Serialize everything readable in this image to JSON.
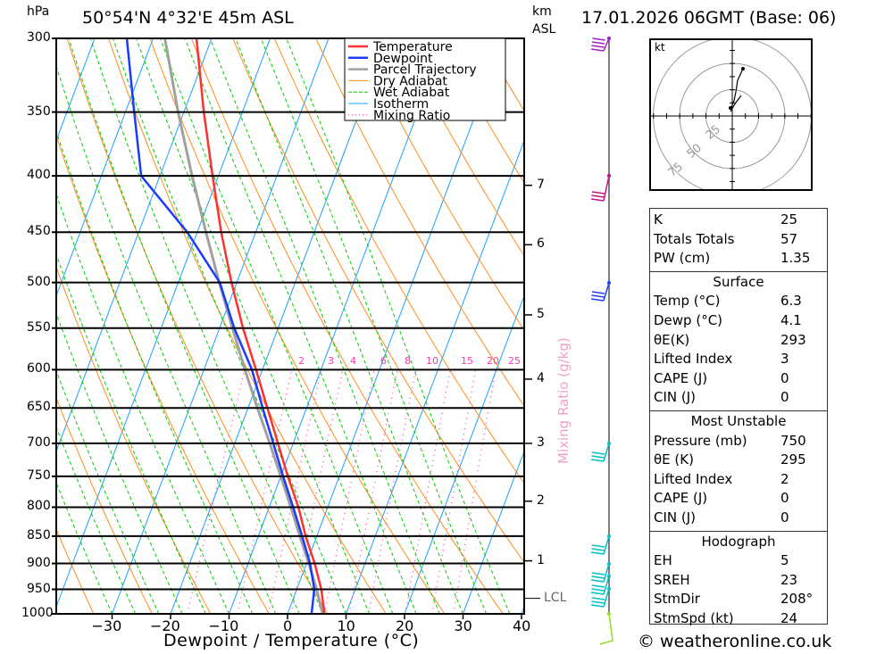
{
  "header": {
    "location": "50°54'N  4°32'E  45m  ASL",
    "datetime": "17.01.2026  06GMT  (Base: 06)",
    "pressure_unit": "hPa",
    "height_unit": "km",
    "height_ref": "ASL"
  },
  "chart_data": {
    "type": "skew-t",
    "title": "50°54'N 4°32'E 45m ASL",
    "xlabel": "Dewpoint / Temperature (°C)",
    "ylabel": "hPa",
    "xlim": [
      -40,
      40
    ],
    "ylim": [
      1000,
      300
    ],
    "x_ticks": [
      -30,
      -20,
      -10,
      0,
      10,
      20,
      30,
      40
    ],
    "x_tick_labels": [
      "−30",
      "−20",
      "−10",
      "0",
      "10",
      "20",
      "30",
      "40"
    ],
    "pressure_levels": [
      300,
      350,
      400,
      450,
      500,
      550,
      600,
      650,
      700,
      750,
      800,
      850,
      900,
      950,
      1000
    ],
    "height_ticks": [
      {
        "km": "7",
        "p": 408
      },
      {
        "km": "6",
        "p": 462
      },
      {
        "km": "5",
        "p": 535
      },
      {
        "km": "4",
        "p": 612
      },
      {
        "km": "3",
        "p": 700
      },
      {
        "km": "2",
        "p": 790
      },
      {
        "km": "1",
        "p": 895
      }
    ],
    "lcl_label": "LCL",
    "lcl_p": 968,
    "mixing_ratio_label": "Mixing Ratio (g/kg)",
    "mixing_ratios": [
      1,
      2,
      3,
      4,
      6,
      8,
      10,
      15,
      20,
      25
    ],
    "mixing_ratio_labels": [
      "2",
      "3",
      "4",
      "6",
      "8",
      "10",
      "15",
      "20",
      "25"
    ],
    "legend": {
      "position": "top-right",
      "entries": [
        {
          "label": "Temperature",
          "color": "#ff3030"
        },
        {
          "label": "Dewpoint",
          "color": "#1a3cff"
        },
        {
          "label": "Parcel Trajectory",
          "color": "#a0a0a0"
        },
        {
          "label": "Dry Adiabat",
          "color": "#ff8c1a"
        },
        {
          "label": "Wet Adiabat",
          "color": "#00cc00"
        },
        {
          "label": "Isotherm",
          "color": "#1aa0ff"
        },
        {
          "label": "Mixing Ratio",
          "color": "#ff3caa"
        }
      ]
    },
    "series": [
      {
        "name": "Temperature",
        "p": [
          1000,
          950,
          900,
          850,
          800,
          750,
          700,
          650,
          600,
          550,
          500,
          450,
          400,
          350,
          300
        ],
        "t": [
          6.3,
          4.2,
          1.4,
          -1.9,
          -5.0,
          -8.8,
          -12.6,
          -16.7,
          -21.1,
          -26.0,
          -30.9,
          -35.9,
          -41.0,
          -46.6,
          -52.6
        ]
      },
      {
        "name": "Dewpoint",
        "p": [
          1000,
          950,
          900,
          850,
          800,
          750,
          700,
          650,
          600,
          550,
          500,
          450,
          400,
          350,
          300
        ],
        "t": [
          4.1,
          3.0,
          0.6,
          -2.5,
          -5.9,
          -9.6,
          -13.4,
          -17.5,
          -21.8,
          -27.5,
          -32.9,
          -41.7,
          -53.2,
          -58.5,
          -64.5
        ]
      },
      {
        "name": "Parcel Trajectory",
        "p": [
          1000,
          950,
          900,
          850,
          800,
          750,
          700,
          650,
          600,
          550,
          500,
          450,
          400,
          350,
          300
        ],
        "t": [
          6.0,
          3.4,
          0.4,
          -2.9,
          -6.3,
          -10.0,
          -14.0,
          -18.4,
          -23.0,
          -27.8,
          -33.0,
          -38.5,
          -44.5,
          -51.0,
          -58.0
        ]
      }
    ]
  },
  "hodograph": {
    "unit": "kt",
    "rings": [
      "25",
      "50",
      "75"
    ]
  },
  "indices": {
    "top": [
      {
        "k": "K",
        "v": "25"
      },
      {
        "k": "Totals Totals",
        "v": "57"
      },
      {
        "k": "PW (cm)",
        "v": "1.35"
      }
    ],
    "surface": {
      "title": "Surface",
      "rows": [
        {
          "k": "Temp (°C)",
          "v": "6.3"
        },
        {
          "k": "Dewp (°C)",
          "v": "4.1"
        },
        {
          "k": "θE(K)",
          "v": "293"
        },
        {
          "k": "Lifted Index",
          "v": "3"
        },
        {
          "k": "CAPE (J)",
          "v": "0"
        },
        {
          "k": "CIN (J)",
          "v": "0"
        }
      ]
    },
    "most_unstable": {
      "title": "Most Unstable",
      "rows": [
        {
          "k": "Pressure (mb)",
          "v": "750"
        },
        {
          "k": "θE (K)",
          "v": "295"
        },
        {
          "k": "Lifted Index",
          "v": "2"
        },
        {
          "k": "CAPE (J)",
          "v": "0"
        },
        {
          "k": "CIN (J)",
          "v": "0"
        }
      ]
    },
    "hodograph": {
      "title": "Hodograph",
      "rows": [
        {
          "k": "EH",
          "v": "5"
        },
        {
          "k": "SREH",
          "v": "23"
        },
        {
          "k": "StmDir",
          "v": "208°"
        },
        {
          "k": "StmSpd (kt)",
          "v": "24"
        }
      ]
    }
  },
  "footer": {
    "copyright": "© weatheronline.co.uk"
  }
}
